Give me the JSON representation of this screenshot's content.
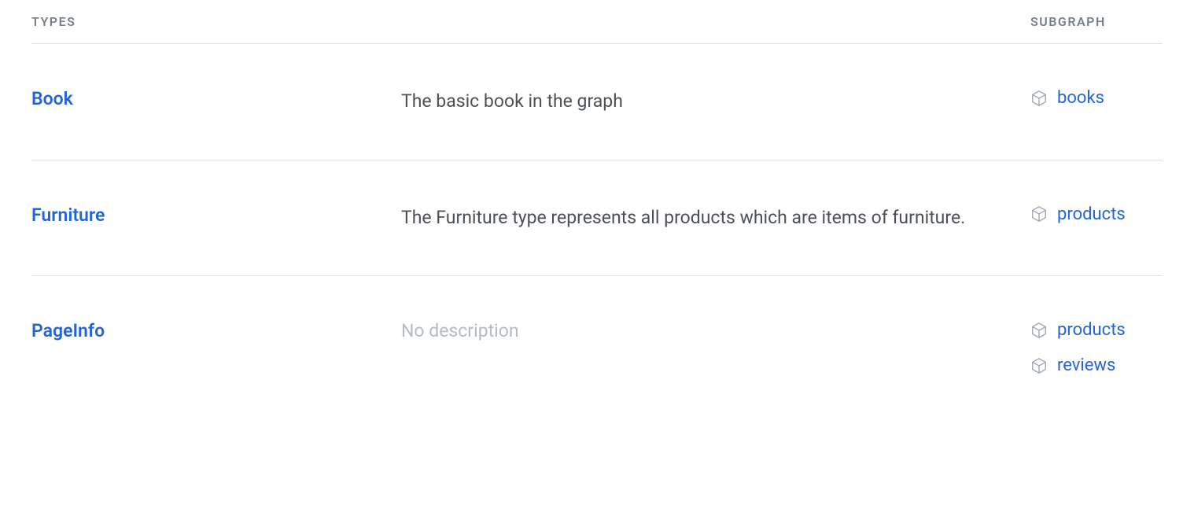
{
  "headers": {
    "types": "TYPES",
    "subgraph": "SUBGRAPH"
  },
  "colors": {
    "link": "#2564d6",
    "header_text": "#777f89",
    "body_text": "#4c5158",
    "placeholder": "#b4bbc2",
    "border": "#dde2e6",
    "icon_stroke": "#a0a7b1",
    "background": "#ffffff"
  },
  "placeholder_text": "No description",
  "rows": [
    {
      "type_name": "Book",
      "description": "The basic book in the graph",
      "has_description": true,
      "subgraphs": [
        "books"
      ]
    },
    {
      "type_name": "Furniture",
      "description": "The Furniture type represents all products which are items of furniture.",
      "has_description": true,
      "subgraphs": [
        "products"
      ]
    },
    {
      "type_name": "PageInfo",
      "description": "",
      "has_description": false,
      "subgraphs": [
        "products",
        "reviews"
      ]
    }
  ]
}
